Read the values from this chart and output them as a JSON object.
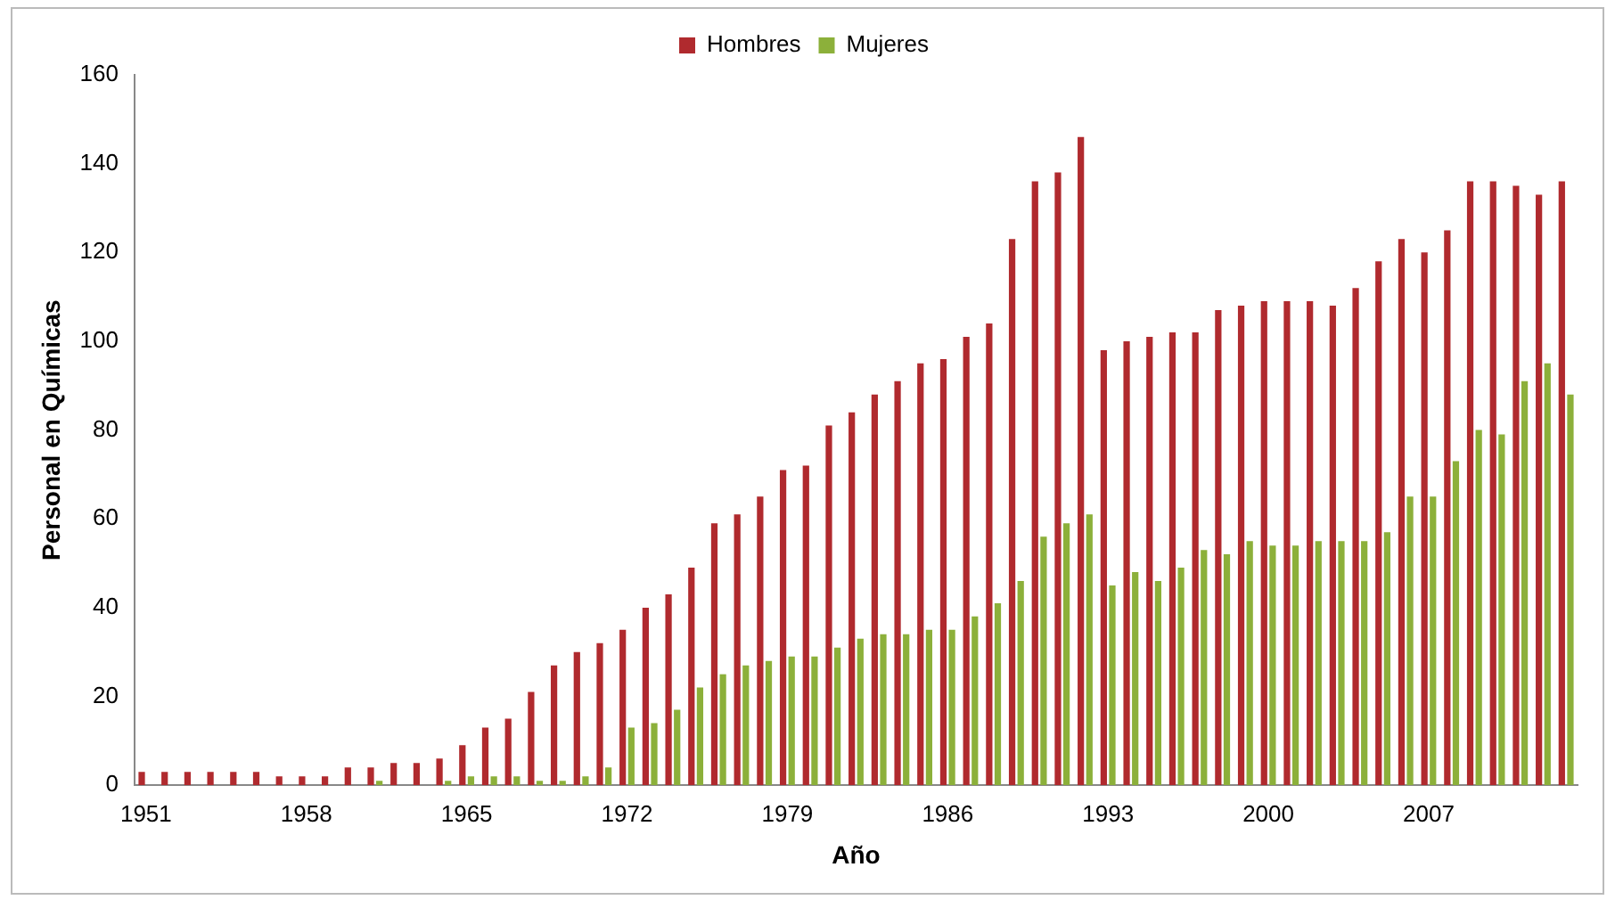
{
  "chart_data": {
    "type": "bar",
    "xlabel": "Año",
    "ylabel": "Personal en Químicas",
    "legend": "top",
    "categories": [
      "1951",
      null,
      null,
      null,
      null,
      null,
      null,
      "1958",
      null,
      null,
      null,
      null,
      null,
      null,
      "1965",
      null,
      null,
      null,
      null,
      null,
      null,
      "1972",
      null,
      null,
      null,
      null,
      null,
      null,
      "1979",
      null,
      null,
      null,
      null,
      null,
      null,
      "1986",
      null,
      null,
      null,
      null,
      null,
      null,
      "1993",
      null,
      null,
      null,
      null,
      null,
      null,
      "2000",
      null,
      null,
      null,
      null,
      null,
      null,
      "2007",
      null,
      null,
      null,
      null,
      null,
      null
    ],
    "series": [
      {
        "name": "Hombres",
        "color": "#b02a2e",
        "values": [
          3,
          3,
          3,
          3,
          3,
          3,
          2,
          2,
          2,
          4,
          4,
          5,
          5,
          6,
          9,
          13,
          15,
          21,
          27,
          30,
          32,
          35,
          40,
          43,
          49,
          59,
          61,
          65,
          71,
          72,
          81,
          84,
          88,
          91,
          95,
          96,
          101,
          104,
          123,
          136,
          138,
          146,
          98,
          100,
          101,
          102,
          102,
          107,
          108,
          109,
          109,
          109,
          108,
          112,
          118,
          123,
          120,
          125,
          136,
          136,
          135,
          133,
          136
        ]
      },
      {
        "name": "Mujeres",
        "color": "#8cb03a",
        "values": [
          0,
          0,
          0,
          0,
          0,
          0,
          0,
          0,
          0,
          0,
          1,
          0,
          0,
          1,
          2,
          2,
          2,
          1,
          1,
          2,
          4,
          13,
          14,
          17,
          22,
          25,
          27,
          28,
          29,
          29,
          31,
          33,
          34,
          34,
          35,
          35,
          38,
          41,
          46,
          56,
          59,
          61,
          45,
          48,
          46,
          49,
          53,
          52,
          55,
          54,
          54,
          55,
          55,
          55,
          57,
          65,
          65,
          73,
          80,
          79,
          91,
          95,
          88
        ]
      }
    ],
    "ylim": [
      0,
      160
    ],
    "yticks": [
      0,
      20,
      40,
      60,
      80,
      100,
      120,
      140,
      160
    ],
    "grid": false
  }
}
